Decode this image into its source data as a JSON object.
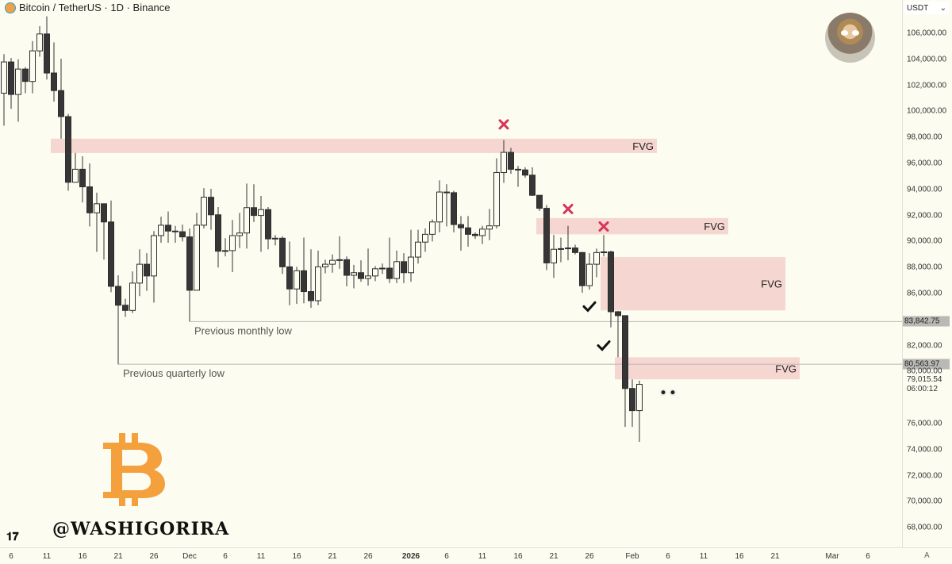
{
  "header": {
    "title": "Bitcoin / TetherUS · 1D · Binance",
    "currency": "USDT"
  },
  "colors": {
    "fvg": "#f6d6d0",
    "up_fill": "#fdfcf0",
    "down_fill": "#363636",
    "wick": "#333333",
    "cross": "#d6365a",
    "level_line": "#b8b8b8",
    "bitcoin": "#f4a03c"
  },
  "watermark": {
    "handle": "@WASHIGORIRA",
    "tv_logo": "TV"
  },
  "axis_auto_label": "A",
  "chart_data": {
    "type": "candlestick",
    "title": "",
    "ylim": [
      67000,
      107300
    ],
    "y_ticks": [
      68000,
      70000,
      72000,
      74000,
      76000,
      80000,
      82000,
      86000,
      88000,
      90000,
      92000,
      94000,
      96000,
      98000,
      100000,
      102000,
      104000,
      106000
    ],
    "y_tick_labels": [
      "68,000.00",
      "70,000.00",
      "72,000.00",
      "74,000.00",
      "76,000.00",
      "80,000.00",
      "82,000.00",
      "86,000.00",
      "88,000.00",
      "90,000.00",
      "92,000.00",
      "94,000.00",
      "96,000.00",
      "98,000.00",
      "100,000.00",
      "102,000.00",
      "104,000.00",
      "106,000.00"
    ],
    "x_ticks": [
      {
        "date": "2025-11-06",
        "label": "6"
      },
      {
        "date": "2025-11-11",
        "label": "11"
      },
      {
        "date": "2025-11-16",
        "label": "16"
      },
      {
        "date": "2025-11-21",
        "label": "21"
      },
      {
        "date": "2025-11-26",
        "label": "26"
      },
      {
        "date": "2025-12-01",
        "label": "Dec"
      },
      {
        "date": "2025-12-06",
        "label": "6"
      },
      {
        "date": "2025-12-11",
        "label": "11"
      },
      {
        "date": "2025-12-16",
        "label": "16"
      },
      {
        "date": "2025-12-21",
        "label": "21"
      },
      {
        "date": "2025-12-26",
        "label": "26"
      },
      {
        "date": "2026-01-01",
        "label": "2026",
        "bold": true
      },
      {
        "date": "2026-01-06",
        "label": "6"
      },
      {
        "date": "2026-01-11",
        "label": "11"
      },
      {
        "date": "2026-01-16",
        "label": "16"
      },
      {
        "date": "2026-01-21",
        "label": "21"
      },
      {
        "date": "2026-01-26",
        "label": "26"
      },
      {
        "date": "2026-02-01",
        "label": "Feb"
      },
      {
        "date": "2026-02-06",
        "label": "6"
      },
      {
        "date": "2026-02-11",
        "label": "11"
      },
      {
        "date": "2026-02-16",
        "label": "16"
      },
      {
        "date": "2026-02-21",
        "label": "21"
      },
      {
        "date": "2026-03-01",
        "label": "Mar"
      },
      {
        "date": "2026-03-06",
        "label": "6"
      }
    ],
    "candles_fields": [
      "date",
      "open",
      "high",
      "low",
      "close"
    ],
    "candles": [
      [
        "2025-11-05",
        101400,
        104400,
        98900,
        103800
      ],
      [
        "2025-11-06",
        103800,
        104100,
        100200,
        101300
      ],
      [
        "2025-11-07",
        101300,
        104000,
        99200,
        103250
      ],
      [
        "2025-11-08",
        103250,
        103400,
        101400,
        102300
      ],
      [
        "2025-11-09",
        102300,
        105400,
        101400,
        104650
      ],
      [
        "2025-11-10",
        104650,
        106550,
        104200,
        105950
      ],
      [
        "2025-11-11",
        105950,
        107300,
        102450,
        102950
      ],
      [
        "2025-11-12",
        102950,
        105300,
        100750,
        101600
      ],
      [
        "2025-11-13",
        101600,
        104050,
        97900,
        99600
      ],
      [
        "2025-11-14",
        99600,
        99800,
        93900,
        94550
      ],
      [
        "2025-11-15",
        94550,
        96800,
        94550,
        95550
      ],
      [
        "2025-11-16",
        95550,
        96550,
        93000,
        94200
      ],
      [
        "2025-11-17",
        94200,
        96000,
        91150,
        92200
      ],
      [
        "2025-11-18",
        92200,
        93750,
        89200,
        92900
      ],
      [
        "2025-11-19",
        92900,
        92900,
        88600,
        91500
      ],
      [
        "2025-11-20",
        91500,
        93150,
        86100,
        86550
      ],
      [
        "2025-11-21",
        86550,
        87400,
        80560,
        85100
      ],
      [
        "2025-11-22",
        85100,
        85600,
        84200,
        84700
      ],
      [
        "2025-11-23",
        84700,
        87700,
        84500,
        86800
      ],
      [
        "2025-11-24",
        86800,
        89400,
        85800,
        88250
      ],
      [
        "2025-11-25",
        88250,
        89100,
        86200,
        87350
      ],
      [
        "2025-11-26",
        87350,
        90800,
        85300,
        90450
      ],
      [
        "2025-11-27",
        90450,
        91900,
        89900,
        91250
      ],
      [
        "2025-11-28",
        91250,
        92300,
        89900,
        90800
      ],
      [
        "2025-11-29",
        90800,
        91200,
        89900,
        90750
      ],
      [
        "2025-11-30",
        90750,
        91300,
        90000,
        90350
      ],
      [
        "2025-12-01",
        90350,
        91000,
        83840,
        86250
      ],
      [
        "2025-12-02",
        86250,
        92200,
        86250,
        91250
      ],
      [
        "2025-12-03",
        91250,
        94100,
        91000,
        93400
      ],
      [
        "2025-12-04",
        93400,
        94050,
        90900,
        92050
      ],
      [
        "2025-12-05",
        92050,
        92650,
        88000,
        89250
      ],
      [
        "2025-12-06",
        89250,
        90250,
        88850,
        89300
      ],
      [
        "2025-12-07",
        89300,
        91650,
        87650,
        90450
      ],
      [
        "2025-12-08",
        90450,
        92200,
        89500,
        90650
      ],
      [
        "2025-12-09",
        90650,
        94450,
        89450,
        92600
      ],
      [
        "2025-12-10",
        92600,
        94400,
        91500,
        92000
      ],
      [
        "2025-12-11",
        92000,
        93500,
        89200,
        92450
      ],
      [
        "2025-12-12",
        92450,
        92650,
        89400,
        90200
      ],
      [
        "2025-12-13",
        90200,
        90500,
        89700,
        90250
      ],
      [
        "2025-12-14",
        90250,
        90400,
        87500,
        88050
      ],
      [
        "2025-12-15",
        88050,
        90000,
        85100,
        86350
      ],
      [
        "2025-12-16",
        86350,
        88050,
        85200,
        87750
      ],
      [
        "2025-12-17",
        87750,
        90300,
        85250,
        86150
      ],
      [
        "2025-12-18",
        86150,
        89400,
        84900,
        85450
      ],
      [
        "2025-12-19",
        85450,
        89300,
        85100,
        88050
      ],
      [
        "2025-12-20",
        88050,
        88600,
        87550,
        88250
      ],
      [
        "2025-12-21",
        88250,
        89000,
        87600,
        88550
      ],
      [
        "2025-12-22",
        88600,
        90400,
        87900,
        88600
      ],
      [
        "2025-12-23",
        88600,
        88850,
        86550,
        87400
      ],
      [
        "2025-12-24",
        87400,
        88200,
        86400,
        87600
      ],
      [
        "2025-12-25",
        87600,
        88550,
        86900,
        87150
      ],
      [
        "2025-12-26",
        87150,
        89450,
        86600,
        87350
      ],
      [
        "2025-12-27",
        87350,
        88100,
        86950,
        87900
      ],
      [
        "2025-12-28",
        87900,
        88300,
        87500,
        87950
      ],
      [
        "2025-12-29",
        87950,
        90300,
        86800,
        87150
      ],
      [
        "2025-12-30",
        87150,
        89300,
        86800,
        88450
      ],
      [
        "2025-12-31",
        88450,
        89100,
        86800,
        87600
      ],
      [
        "2026-01-01",
        87600,
        90900,
        86900,
        88800
      ],
      [
        "2026-01-02",
        88800,
        90900,
        88300,
        89950
      ],
      [
        "2026-01-03",
        89950,
        91000,
        89200,
        90550
      ],
      [
        "2026-01-04",
        90550,
        91700,
        90000,
        91500
      ],
      [
        "2026-01-05",
        91500,
        94700,
        90700,
        93800
      ],
      [
        "2026-01-06",
        93800,
        94400,
        91150,
        93750
      ],
      [
        "2026-01-07",
        93750,
        93900,
        90700,
        91300
      ],
      [
        "2026-01-08",
        91300,
        91950,
        89300,
        91050
      ],
      [
        "2026-01-09",
        91050,
        91950,
        89600,
        90550
      ],
      [
        "2026-01-10",
        90550,
        90700,
        90200,
        90450
      ],
      [
        "2026-01-11",
        90450,
        91200,
        89800,
        90950
      ],
      [
        "2026-01-12",
        90950,
        92500,
        90100,
        91200
      ],
      [
        "2026-01-13",
        91200,
        96400,
        91000,
        95300
      ],
      [
        "2026-01-14",
        95300,
        97800,
        94500,
        96850
      ],
      [
        "2026-01-15",
        96850,
        97200,
        95200,
        95550
      ],
      [
        "2026-01-16",
        95550,
        95800,
        94200,
        95500
      ],
      [
        "2026-01-17",
        95500,
        95700,
        94900,
        95100
      ],
      [
        "2026-01-18",
        95100,
        95700,
        93500,
        93550
      ],
      [
        "2026-01-19",
        93550,
        93550,
        92350,
        92550
      ],
      [
        "2026-01-20",
        92550,
        92800,
        87800,
        88350
      ],
      [
        "2026-01-21",
        88350,
        90500,
        87200,
        89400
      ],
      [
        "2026-01-22",
        89400,
        90300,
        88400,
        89450
      ],
      [
        "2026-01-23",
        89450,
        91200,
        88550,
        89500
      ],
      [
        "2026-01-24",
        89500,
        89750,
        89000,
        89150
      ],
      [
        "2026-01-25",
        89150,
        89200,
        86050,
        86600
      ],
      [
        "2026-01-26",
        86600,
        89100,
        86300,
        88250
      ],
      [
        "2026-01-27",
        88250,
        89450,
        87250,
        89150
      ],
      [
        "2026-01-28",
        89150,
        90500,
        88850,
        89200
      ],
      [
        "2026-01-29",
        89200,
        89300,
        83400,
        84600
      ],
      [
        "2026-01-30",
        84600,
        84650,
        81100,
        84300
      ],
      [
        "2026-01-31",
        84300,
        84300,
        75750,
        78700
      ],
      [
        "2026-02-01",
        78700,
        79400,
        75750,
        77000
      ],
      [
        "2026-02-02",
        77000,
        79300,
        74600,
        79015.54
      ]
    ],
    "fvg_zones": [
      {
        "label": "FVG",
        "from": "2025-11-12",
        "to": "2026-02-04",
        "top": 97900,
        "bottom": 96800
      },
      {
        "label": "FVG",
        "from": "2026-01-19",
        "to": "2026-02-14",
        "top": 91800,
        "bottom": 90550
      },
      {
        "label": "FVG",
        "from": "2026-01-28",
        "to": "2026-02-22",
        "top": 88800,
        "bottom": 84700
      },
      {
        "label": "FVG",
        "from": "2026-01-30",
        "to": "2026-02-24",
        "top": 81100,
        "bottom": 79400
      }
    ],
    "levels": [
      {
        "label": "Previous monthly low",
        "price": 83842.75,
        "price_label": "83,842.75",
        "from": "2025-12-01"
      },
      {
        "label": "Previous quarterly low",
        "price": 80563.97,
        "price_label": "80,563.97",
        "from": "2025-11-21"
      }
    ],
    "last_price": {
      "label": "79,015.54",
      "countdown": "06:00:12"
    },
    "annotations": [
      {
        "type": "cross",
        "date": "2026-01-14",
        "price": 99000
      },
      {
        "type": "cross",
        "date": "2026-01-23",
        "price": 92500
      },
      {
        "type": "cross",
        "date": "2026-01-28",
        "price": 91150
      },
      {
        "type": "check",
        "date": "2026-01-26",
        "price": 85000
      },
      {
        "type": "check",
        "date": "2026-01-28",
        "price": 82000
      },
      {
        "type": "eyes",
        "date": "2026-02-06",
        "price": 78400
      }
    ]
  }
}
